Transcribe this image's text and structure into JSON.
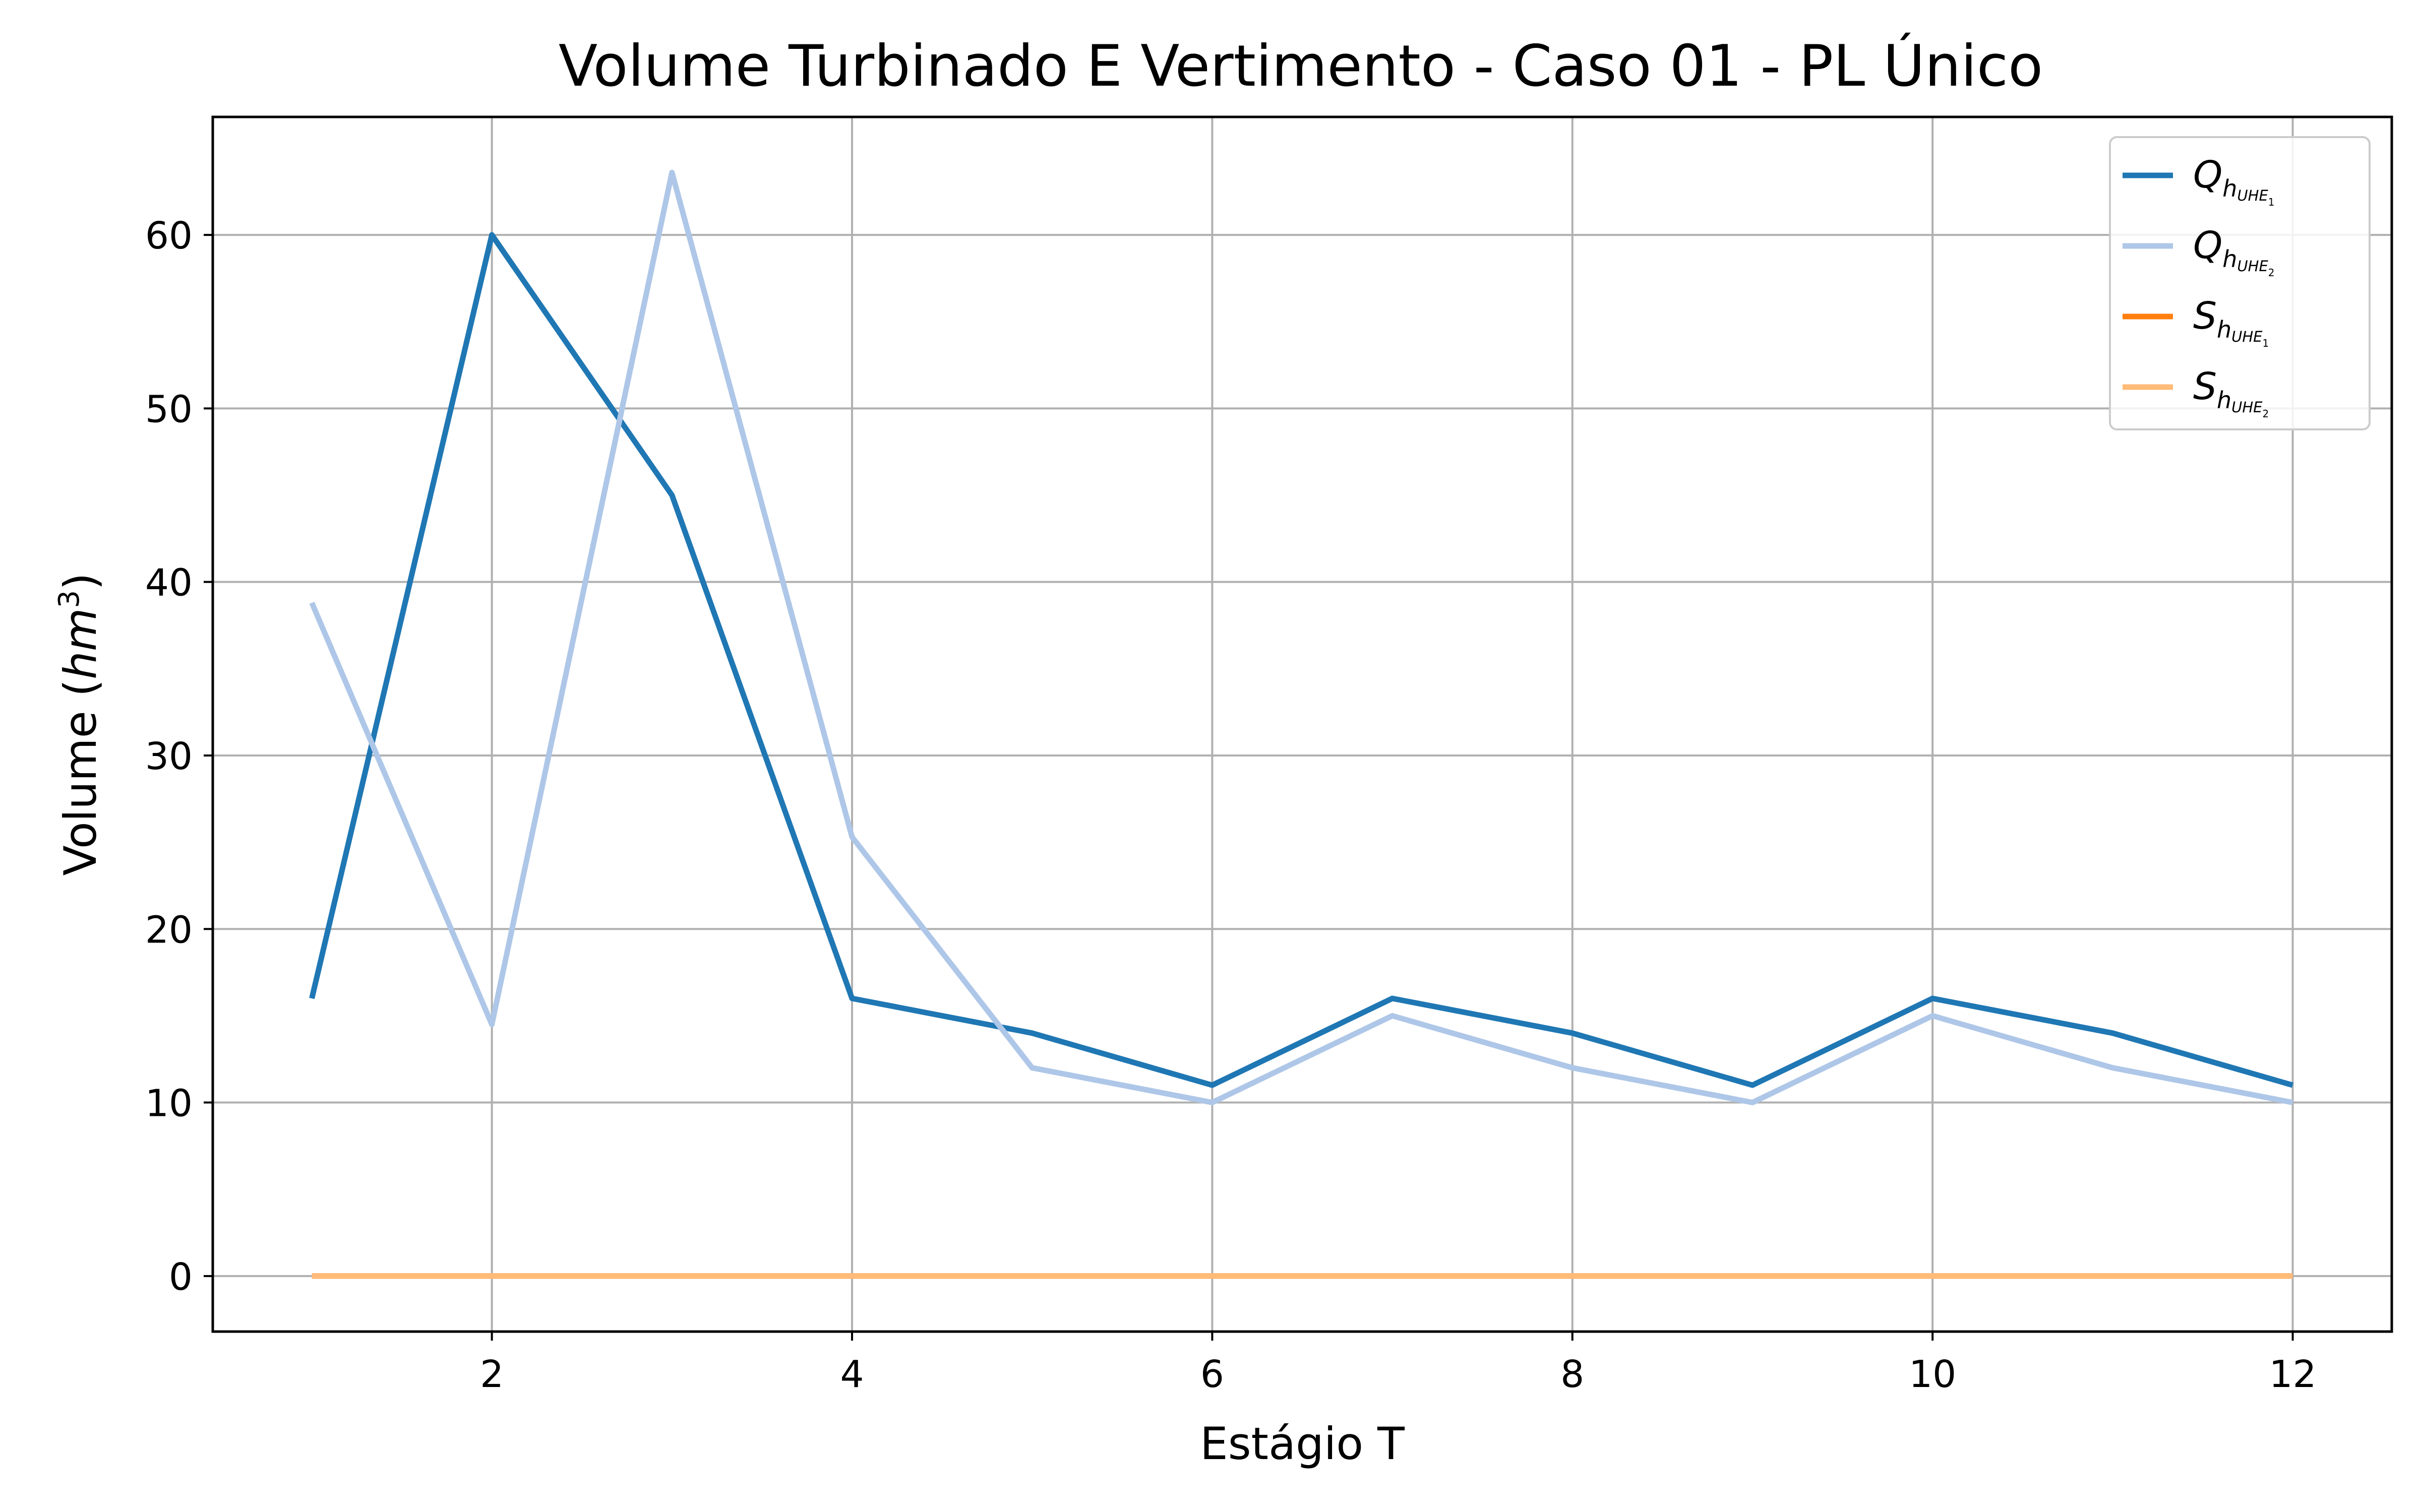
{
  "chart_data": {
    "type": "line",
    "title": "Volume Turbinado E Vertimento - Caso 01 - PL Único",
    "xlabel": "Estágio T",
    "ylabel_text": "Volume (",
    "ylabel_unit": "hm",
    "ylabel_exp": "3",
    "ylabel_close": ")",
    "xlim": [
      0.45,
      12.55
    ],
    "ylim": [
      -3.2,
      66.8
    ],
    "x_ticks": [
      2,
      4,
      6,
      8,
      10,
      12
    ],
    "y_ticks": [
      0,
      10,
      20,
      30,
      40,
      50,
      60
    ],
    "grid": true,
    "legend_position": "top-right",
    "x": [
      1,
      2,
      3,
      4,
      5,
      6,
      7,
      8,
      9,
      10,
      11,
      12
    ],
    "series": [
      {
        "name_main": "Q",
        "name_sub": "h",
        "name_subsub": "UHE",
        "name_index": "1",
        "color": "#1f77b4",
        "values": [
          16,
          60,
          45,
          16,
          14,
          11,
          16,
          14,
          11,
          16,
          14,
          11
        ]
      },
      {
        "name_main": "Q",
        "name_sub": "h",
        "name_subsub": "UHE",
        "name_index": "2",
        "color": "#aec7e8",
        "values": [
          38.8,
          14.5,
          63.6,
          25.3,
          12,
          10,
          15,
          12,
          10,
          15,
          12,
          10
        ]
      },
      {
        "name_main": "S",
        "name_sub": "h",
        "name_subsub": "UHE",
        "name_index": "1",
        "color": "#ff7f0e",
        "values": [
          0,
          0,
          0,
          0,
          0,
          0,
          0,
          0,
          0,
          0,
          0,
          0
        ]
      },
      {
        "name_main": "S",
        "name_sub": "h",
        "name_subsub": "UHE",
        "name_index": "2",
        "color": "#ffbb78",
        "values": [
          0,
          0,
          0,
          0,
          0,
          0,
          0,
          0,
          0,
          0,
          0,
          0
        ]
      }
    ]
  }
}
